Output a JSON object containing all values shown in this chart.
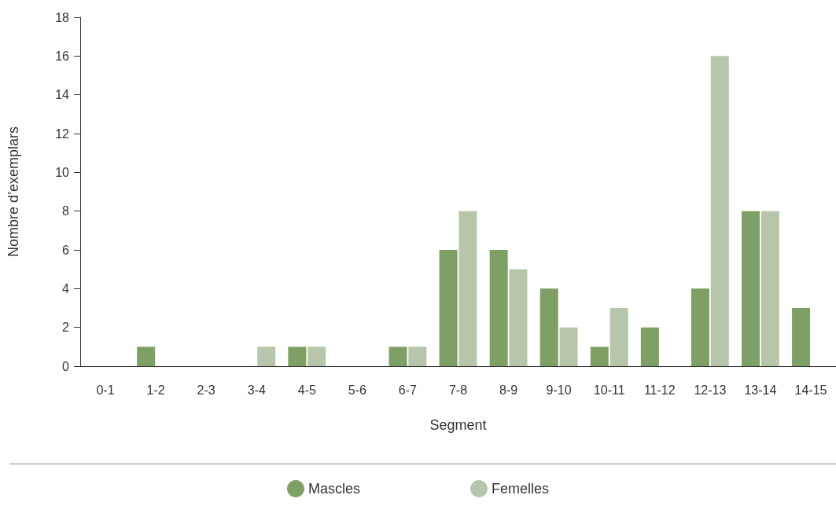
{
  "chart_data": {
    "type": "bar",
    "xlabel": "Segment",
    "ylabel": "Nombre d’exemplars",
    "categories": [
      "0-1",
      "1-2",
      "2-3",
      "3-4",
      "4-5",
      "5-6",
      "6-7",
      "7-8",
      "8-9",
      "9-10",
      "10-11",
      "11-12",
      "12-13",
      "13-14",
      "14-15"
    ],
    "series": [
      {
        "name": "Mascles",
        "color": "#7fa064",
        "values": [
          0,
          1,
          0,
          0,
          1,
          0,
          1,
          6,
          6,
          4,
          1,
          2,
          4,
          8,
          3
        ]
      },
      {
        "name": "Femelles",
        "color": "#b7c6aa",
        "values": [
          0,
          0,
          0,
          1,
          1,
          0,
          1,
          8,
          5,
          2,
          3,
          0,
          16,
          8,
          0
        ]
      }
    ],
    "ylim": [
      0,
      18
    ],
    "yticks": [
      0,
      2,
      4,
      6,
      8,
      10,
      12,
      14,
      16,
      18
    ],
    "grid": false,
    "legend": "bottom"
  }
}
